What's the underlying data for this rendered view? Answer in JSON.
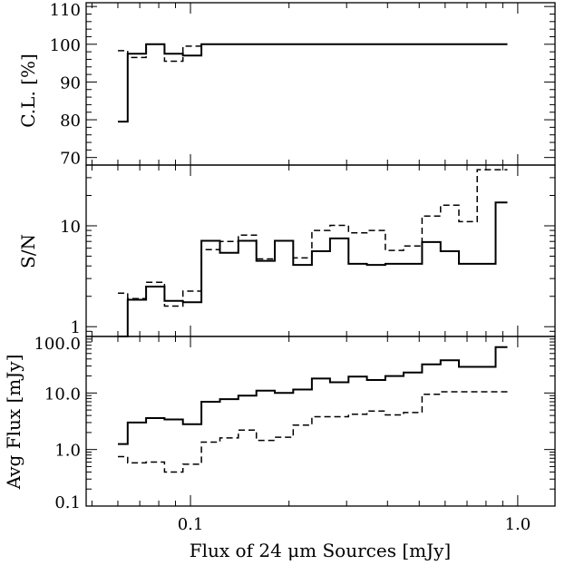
{
  "chart_data": [
    {
      "type": "line",
      "step": true,
      "ylabel": "C.L. [%]",
      "yscale": "linear",
      "ylim": [
        68,
        111
      ],
      "yticks": [
        70,
        80,
        90,
        100,
        110
      ],
      "ytick_labels": [
        "70",
        "80",
        "90",
        "100",
        "110"
      ],
      "bin_edges": [
        0.06,
        0.0643,
        0.0732,
        0.0833,
        0.0948,
        0.108,
        0.123,
        0.14,
        0.159,
        0.181,
        0.206,
        0.235,
        0.267,
        0.304,
        0.346,
        0.394,
        0.448,
        0.51,
        0.581,
        0.661,
        0.752,
        0.856,
        0.93
      ],
      "series": [
        {
          "style": "solid",
          "values": [
            79.5,
            97.5,
            100,
            97.5,
            97,
            100,
            100,
            100,
            100,
            100,
            100,
            100,
            100,
            100,
            100,
            100,
            100,
            100,
            100,
            100,
            100,
            100
          ]
        },
        {
          "style": "dashed",
          "values": [
            98.3,
            96.5,
            100,
            95.5,
            99.5,
            100,
            100,
            100,
            100,
            100,
            100,
            100,
            100,
            100,
            100,
            100,
            100,
            100,
            100,
            100,
            100,
            100
          ]
        }
      ]
    },
    {
      "type": "line",
      "step": true,
      "ylabel": "S/N",
      "yscale": "log",
      "ylim": [
        0.8,
        40
      ],
      "yticks": [
        1,
        10
      ],
      "ytick_labels": [
        "1",
        "10"
      ],
      "bin_edges": [
        0.06,
        0.0643,
        0.0732,
        0.0833,
        0.0948,
        0.108,
        0.123,
        0.14,
        0.159,
        0.181,
        0.206,
        0.235,
        0.267,
        0.304,
        0.346,
        0.394,
        0.448,
        0.51,
        0.581,
        0.661,
        0.752,
        0.856,
        0.93
      ],
      "series": [
        {
          "style": "solid",
          "values": [
            0.8,
            1.85,
            2.5,
            1.8,
            1.75,
            7.1,
            5.4,
            7.1,
            4.5,
            7.1,
            4.1,
            5.6,
            7.5,
            4.2,
            4.1,
            4.2,
            4.2,
            6.9,
            5.6,
            4.2,
            4.2,
            17.0
          ]
        },
        {
          "style": "dashed",
          "values": [
            2.15,
            1.9,
            2.75,
            1.6,
            2.25,
            5.8,
            7.0,
            8.1,
            4.7,
            7.1,
            4.8,
            9.0,
            10.1,
            8.5,
            9.0,
            5.7,
            6.3,
            12.5,
            16.0,
            11.0,
            36.0,
            36.0
          ]
        }
      ]
    },
    {
      "type": "line",
      "step": true,
      "xlabel": "Flux of 24 μm Sources [mJy]",
      "ylabel": "Avg Flux [mJy]",
      "xscale": "log",
      "xlim": [
        0.048,
        1.3
      ],
      "xticks": [
        0.1,
        1.0
      ],
      "xtick_labels": [
        "0.1",
        "1.0"
      ],
      "yscale": "log",
      "ylim": [
        0.1,
        100
      ],
      "yticks": [
        0.1,
        1.0,
        10.0,
        100.0
      ],
      "ytick_labels": [
        "0.1",
        "1.0",
        "10.0",
        "100.0"
      ],
      "bin_edges": [
        0.06,
        0.0643,
        0.0732,
        0.0833,
        0.0948,
        0.108,
        0.123,
        0.14,
        0.159,
        0.181,
        0.206,
        0.235,
        0.267,
        0.304,
        0.346,
        0.394,
        0.448,
        0.51,
        0.581,
        0.661,
        0.752,
        0.856,
        0.93
      ],
      "series": [
        {
          "style": "solid",
          "values": [
            1.25,
            3.0,
            3.6,
            3.4,
            2.8,
            7.0,
            7.8,
            9.0,
            11.0,
            10.0,
            11.5,
            18.0,
            15.5,
            19.5,
            17.0,
            20.0,
            23.0,
            32.0,
            38.0,
            29.0,
            29.0,
            65.0
          ]
        },
        {
          "style": "dashed",
          "values": [
            0.75,
            0.58,
            0.6,
            0.4,
            0.55,
            1.35,
            1.6,
            2.2,
            1.45,
            1.65,
            2.7,
            3.8,
            3.8,
            4.2,
            4.8,
            4.1,
            4.5,
            9.5,
            10.5,
            10.5,
            10.5,
            10.5
          ]
        }
      ]
    }
  ]
}
